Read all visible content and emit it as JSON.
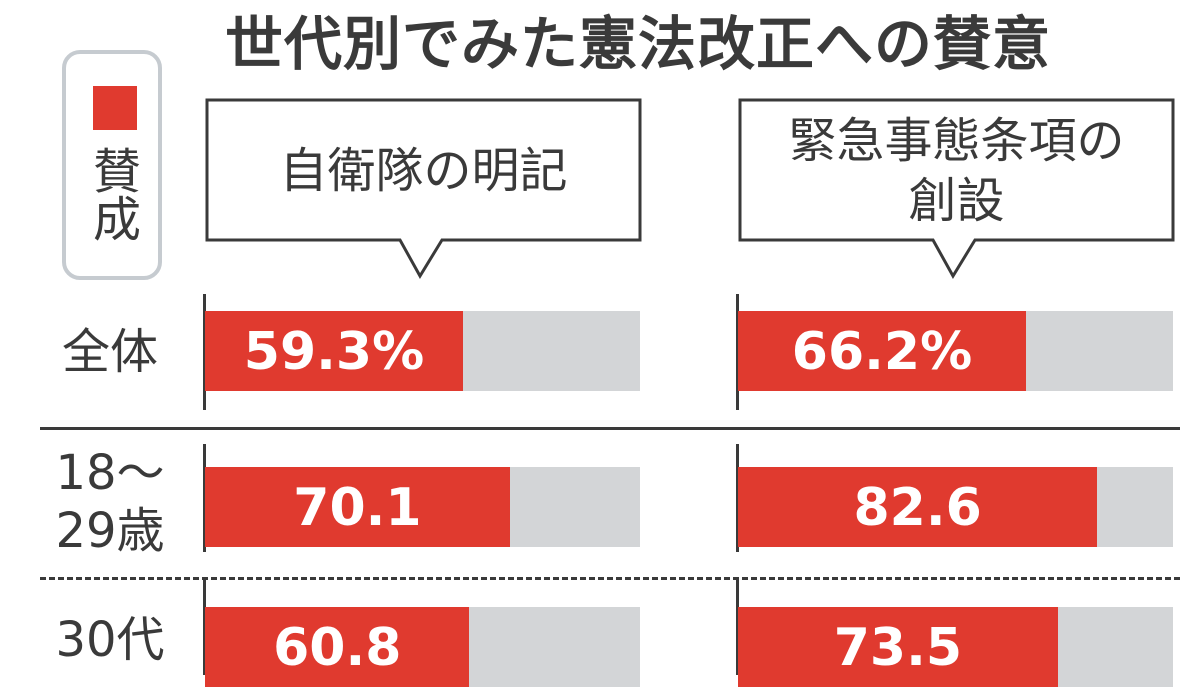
{
  "title": "世代別でみた憲法改正への賛意",
  "legend": {
    "label": "賛成",
    "color": "#e03a2f"
  },
  "colors": {
    "fill": "#e03a2f",
    "track": "#d3d5d7"
  },
  "chart_data": {
    "type": "bar",
    "title": "世代別でみた憲法改正への賛意",
    "unit": "%",
    "xlim": [
      0,
      100
    ],
    "categories": [
      "全体",
      "18～\n29歳",
      "30代"
    ],
    "series": [
      {
        "name": "自衛隊の明記",
        "values": [
          59.3,
          70.1,
          60.8
        ],
        "labels": [
          "59.3%",
          "70.1",
          "60.8"
        ]
      },
      {
        "name": "緊急事態条項の\n創設",
        "values": [
          66.2,
          82.6,
          73.5
        ],
        "labels": [
          "66.2%",
          "82.6",
          "73.5"
        ]
      }
    ]
  }
}
